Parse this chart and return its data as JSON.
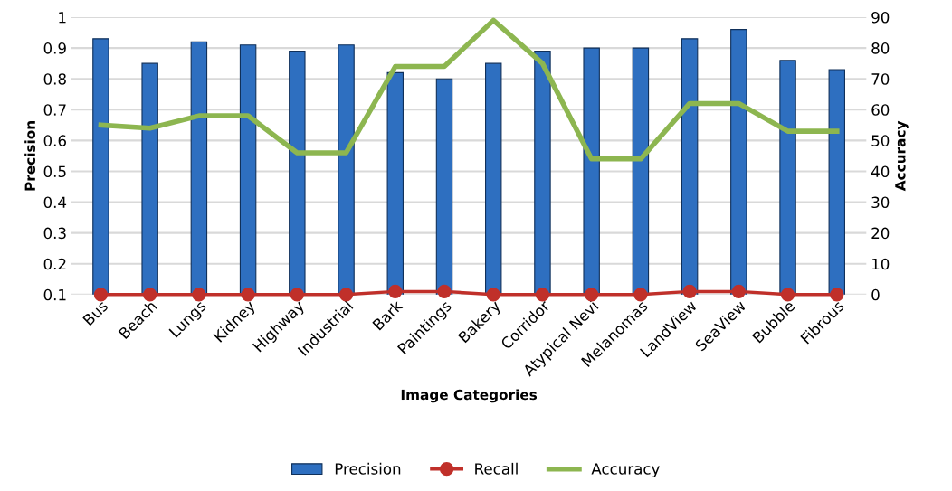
{
  "chart_data": {
    "type": "bar",
    "xlabel": "Image Categories",
    "ylabel": "Precision",
    "y2label": "Accuracy",
    "categories": [
      "Bus",
      "Beach",
      "Lungs",
      "Kidney",
      "Highway",
      "Industrial",
      "Bark",
      "Paintings",
      "Bakery",
      "Corridor",
      "Atypical Nevi",
      "Melanomas",
      "LandView",
      "SeaView",
      "Bubble",
      "Fibrous"
    ],
    "series": [
      {
        "name": "Precision",
        "color": "#2e6fc0",
        "values": [
          0.93,
          0.85,
          0.92,
          0.91,
          0.89,
          0.91,
          0.82,
          0.8,
          0.85,
          0.89,
          0.9,
          0.9,
          0.93,
          0.96,
          0.86,
          0.83
        ]
      },
      {
        "name": "Recall",
        "color": "#c0302a",
        "type": "line",
        "axis": "y2",
        "marker": "circle",
        "values": [
          0,
          0,
          0,
          0,
          0,
          0,
          1,
          1,
          0,
          0,
          0,
          0,
          1,
          1,
          0,
          0
        ]
      },
      {
        "name": "Accuracy",
        "color": "#8db650",
        "type": "line",
        "axis": "y2",
        "marker": "none",
        "values": [
          55,
          54,
          58,
          58,
          46,
          46,
          74,
          74,
          89,
          75,
          44,
          44,
          62,
          62,
          53,
          53
        ]
      }
    ],
    "ylim": [
      0.1,
      1
    ],
    "yticks": [
      0.1,
      0.2,
      0.3,
      0.4,
      0.5,
      0.6,
      0.7,
      0.8,
      0.9,
      1
    ],
    "y2lim": [
      0,
      90
    ],
    "y2ticks": [
      0,
      10,
      20,
      30,
      40,
      50,
      60,
      70,
      80,
      90
    ],
    "grid": "y",
    "legend": "bottom"
  }
}
